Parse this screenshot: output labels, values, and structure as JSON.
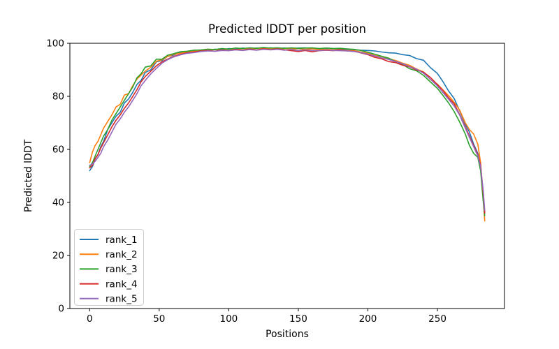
{
  "chart_data": {
    "type": "line",
    "title": "Predicted lDDT per position",
    "xlabel": "Positions",
    "ylabel": "Predicted lDDT",
    "xlim": [
      -14.2,
      298.2
    ],
    "ylim": [
      0,
      100
    ],
    "x_ticks": [
      0,
      50,
      100,
      150,
      200,
      250
    ],
    "y_ticks": [
      0,
      20,
      40,
      60,
      80,
      100
    ],
    "grid": false,
    "legend_position": "lower left",
    "x": [
      0,
      2,
      4,
      6,
      8,
      10,
      13,
      16,
      19,
      22,
      25,
      28,
      31,
      34,
      37,
      40,
      44,
      48,
      52,
      56,
      60,
      65,
      70,
      75,
      80,
      85,
      90,
      95,
      100,
      105,
      110,
      115,
      120,
      125,
      130,
      135,
      140,
      145,
      150,
      155,
      160,
      165,
      170,
      175,
      180,
      185,
      190,
      195,
      200,
      205,
      210,
      215,
      220,
      225,
      230,
      235,
      240,
      245,
      250,
      254,
      258,
      262,
      266,
      270,
      273,
      276,
      279,
      281,
      283,
      284
    ],
    "series": [
      {
        "name": "rank_1",
        "color": "#1f77b4",
        "values": [
          52,
          53.5,
          56.5,
          58,
          61,
          63,
          67.5,
          70,
          72.5,
          74,
          77.5,
          79,
          81.5,
          84.5,
          86,
          89,
          90,
          93,
          93.5,
          95,
          95.5,
          96.5,
          96.8,
          97.2,
          97.4,
          97.2,
          97.8,
          97.5,
          98,
          97.8,
          98.2,
          97.9,
          98.2,
          98,
          98.3,
          98,
          98.2,
          97.9,
          98.2,
          98.3,
          98,
          97.8,
          98.2,
          98,
          97.9,
          97.7,
          97.6,
          97.4,
          97.3,
          97.1,
          96.7,
          96.4,
          96.3,
          95.7,
          95.4,
          94.2,
          93.6,
          90.8,
          88.6,
          85.5,
          82,
          79.2,
          74.5,
          69.5,
          66.5,
          62,
          58.5,
          53,
          42,
          36
        ]
      },
      {
        "name": "rank_2",
        "color": "#ff7f0e",
        "values": [
          55,
          59,
          61.5,
          63,
          65.5,
          68,
          70.5,
          73,
          76,
          77,
          80.5,
          81,
          84,
          86.5,
          88,
          89.5,
          91,
          93.2,
          93.8,
          95,
          95.8,
          96.2,
          96.8,
          97,
          97.4,
          97.3,
          97.6,
          97.4,
          97.8,
          97.6,
          98,
          97.8,
          98.1,
          97.9,
          98.1,
          97.9,
          98,
          97.8,
          98,
          97.7,
          97.9,
          97.6,
          97.8,
          97.5,
          97.6,
          97.3,
          97.2,
          96.7,
          96.3,
          95.4,
          95,
          94.1,
          93.5,
          92.5,
          91.7,
          90.3,
          89.2,
          86.3,
          84.6,
          82.4,
          80.2,
          77.8,
          74.8,
          70,
          67.5,
          65.8,
          62,
          55,
          41,
          33
        ]
      },
      {
        "name": "rank_3",
        "color": "#2ca02c",
        "values": [
          53.5,
          55,
          57.5,
          60,
          62.5,
          65,
          67.5,
          71,
          73.5,
          76,
          78.5,
          81,
          83.5,
          87,
          88.5,
          91,
          91.5,
          94,
          94,
          95.5,
          96,
          96.8,
          97,
          97.4,
          97.5,
          97.8,
          97.6,
          98,
          97.8,
          98.2,
          98,
          98.3,
          98.1,
          98.4,
          98.2,
          98.3,
          98.1,
          98.3,
          98.1,
          98.2,
          98.3,
          98,
          98.2,
          98,
          98.1,
          97.9,
          97.7,
          97.3,
          96.6,
          95.9,
          95.1,
          94.4,
          93.1,
          92,
          90.4,
          89.6,
          87.9,
          85.4,
          83,
          80.3,
          77.5,
          74.3,
          70.3,
          65.8,
          61.5,
          58.5,
          57,
          52,
          40,
          35
        ]
      },
      {
        "name": "rank_4",
        "color": "#d62728",
        "values": [
          53,
          54,
          56.5,
          58,
          60.5,
          62.5,
          65.5,
          68.5,
          71,
          73,
          75.5,
          77.5,
          80,
          82.5,
          85.5,
          87.5,
          89.5,
          91.5,
          93,
          94,
          95,
          95.8,
          96.4,
          96.7,
          97.1,
          97.3,
          97,
          97.5,
          97.2,
          97.7,
          97.4,
          97.8,
          97.5,
          97.9,
          97.6,
          97.9,
          97.5,
          97.2,
          96.9,
          97.3,
          96.8,
          97.2,
          97.4,
          97.2,
          97.5,
          97.1,
          97,
          96.4,
          95.7,
          94.7,
          94.1,
          93.1,
          92.7,
          91.7,
          91.1,
          89.9,
          89.1,
          87.1,
          84.4,
          82.2,
          79.4,
          77.2,
          73.1,
          68.5,
          65,
          61.5,
          58,
          54,
          43,
          36
        ]
      },
      {
        "name": "rank_5",
        "color": "#9467bd",
        "values": [
          54,
          54.5,
          55.5,
          57,
          58.5,
          61,
          63.5,
          66.5,
          69.5,
          71.5,
          74,
          76,
          78.5,
          81,
          84,
          86,
          88.5,
          90.5,
          92.5,
          93.8,
          94.8,
          95.6,
          96.2,
          96.5,
          96.9,
          97.1,
          97,
          97.3,
          97.2,
          97.5,
          97.3,
          97.6,
          97.4,
          97.7,
          97.5,
          97.7,
          97.4,
          97.6,
          97.3,
          97.5,
          97.3,
          97.2,
          97.5,
          97.3,
          97.2,
          97.1,
          96.9,
          96.5,
          95.9,
          95.2,
          94.5,
          93.9,
          93.1,
          92.3,
          91.2,
          90.2,
          88.7,
          86.4,
          83.9,
          81.4,
          78.9,
          76.4,
          72.9,
          68,
          64.5,
          61,
          57.5,
          53.5,
          44,
          37
        ]
      }
    ]
  }
}
